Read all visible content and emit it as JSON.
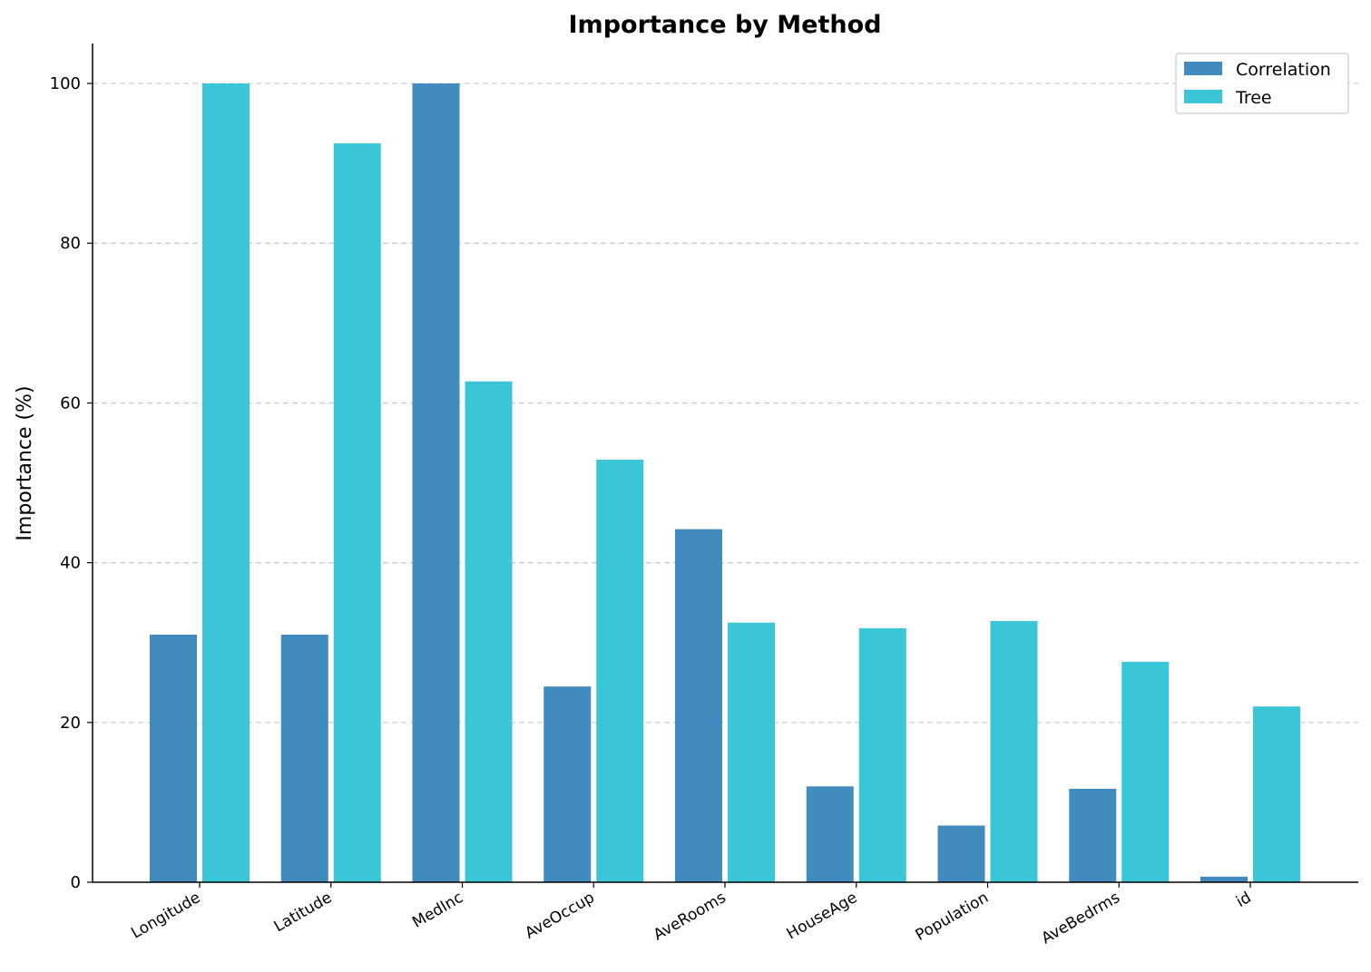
{
  "chart_data": {
    "type": "bar",
    "title": "Importance by Method",
    "xlabel": "",
    "ylabel": "Importance (%)",
    "ylim": [
      0,
      105
    ],
    "yticks": [
      0,
      20,
      40,
      60,
      80,
      100
    ],
    "grid": "y-dashed",
    "legend_position": "top-right",
    "categories": [
      "Longitude",
      "Latitude",
      "MedInc",
      "AveOccup",
      "AveRooms",
      "HouseAge",
      "Population",
      "AveBedrms",
      "id"
    ],
    "series": [
      {
        "name": "Correlation",
        "color": "#428bbf",
        "values": [
          31.0,
          31.0,
          100.0,
          24.5,
          44.2,
          12.0,
          7.1,
          11.7,
          0.7
        ]
      },
      {
        "name": "Tree",
        "color": "#3ac6d6",
        "values": [
          100.0,
          92.5,
          62.7,
          52.9,
          32.5,
          31.8,
          32.7,
          27.6,
          22.0
        ]
      }
    ]
  }
}
